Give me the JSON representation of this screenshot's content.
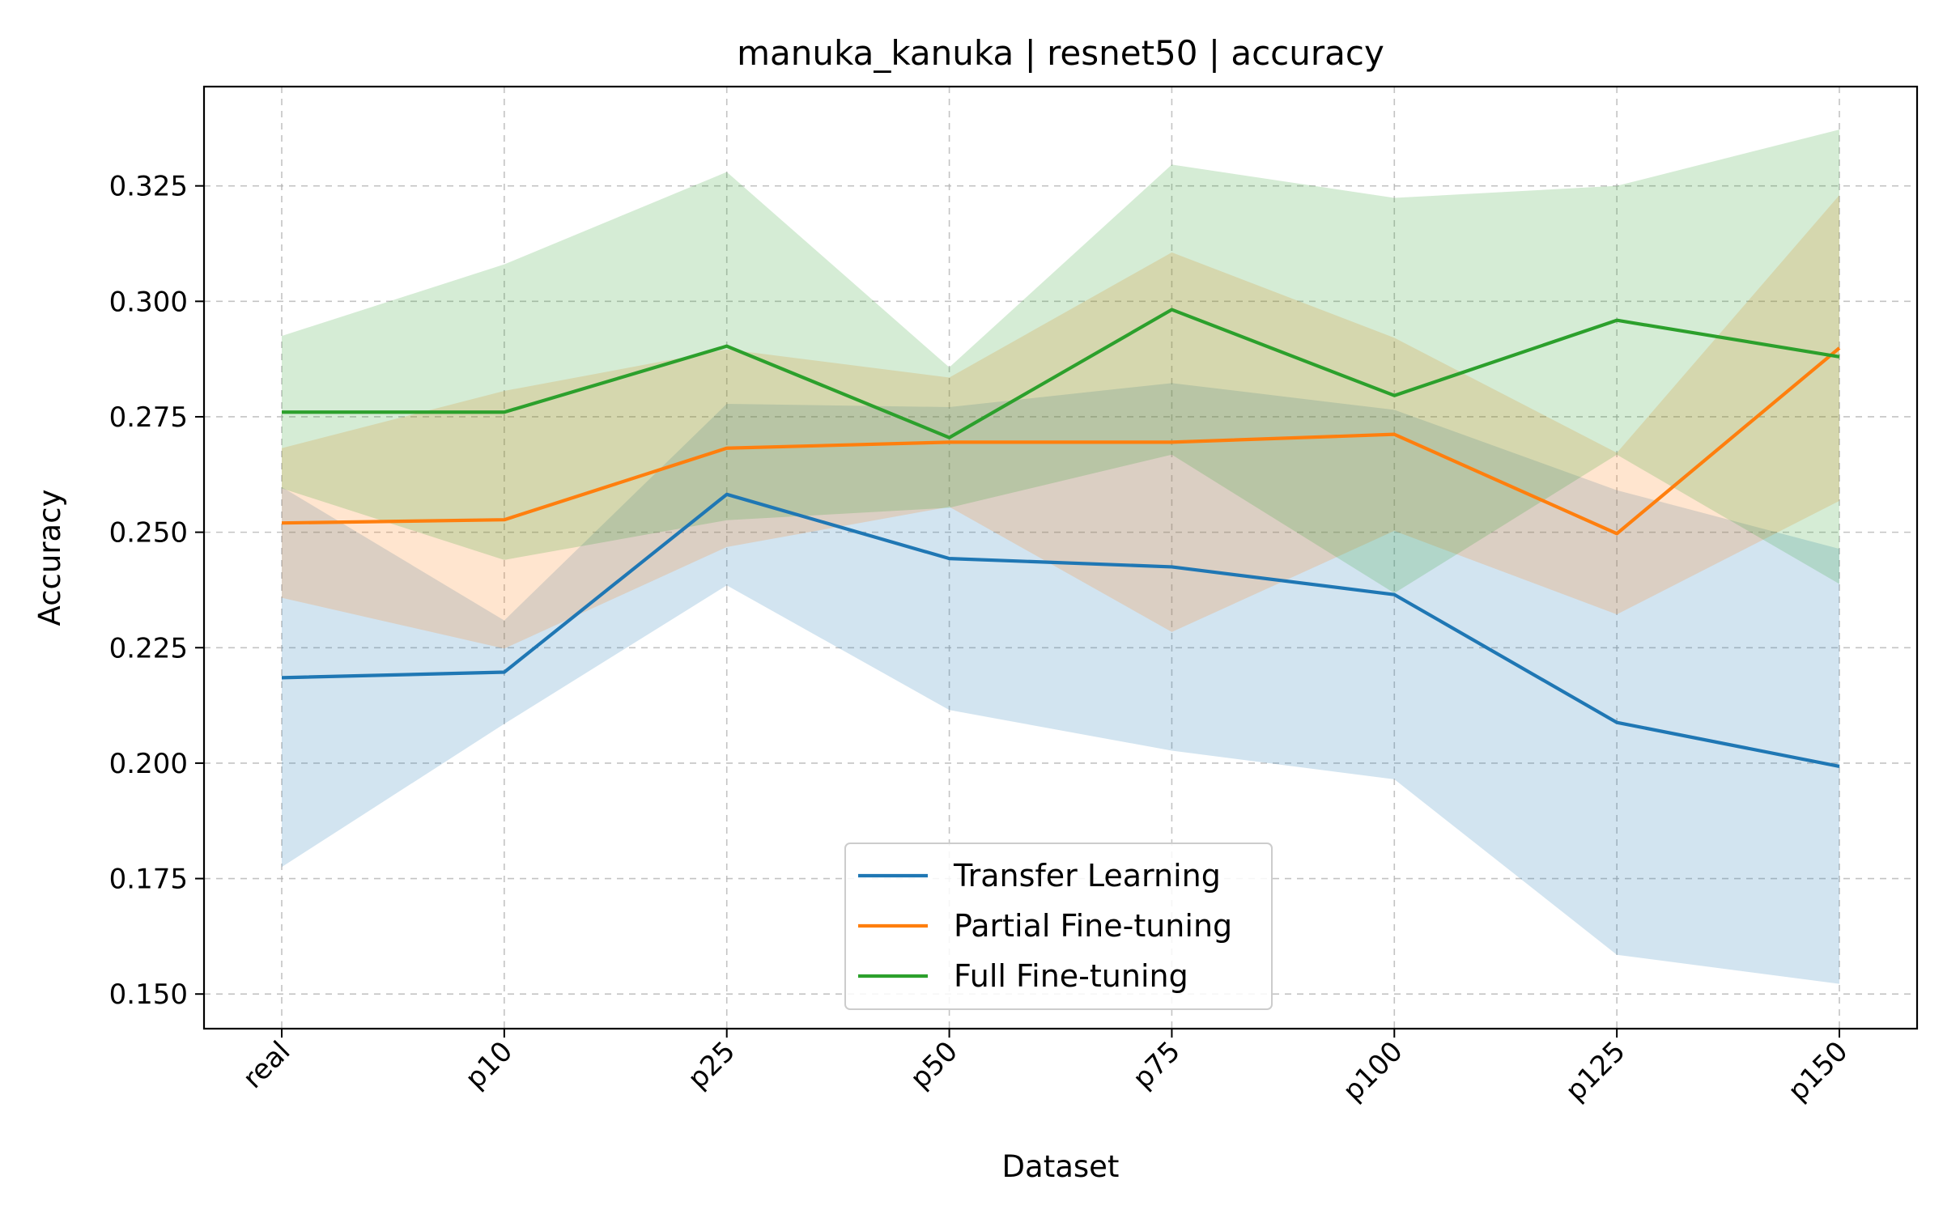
{
  "chart_data": {
    "type": "line",
    "title": "manuka_kanuka | resnet50 | accuracy",
    "xlabel": "Dataset",
    "ylabel": "Accuracy",
    "categories": [
      "real",
      "p10",
      "p25",
      "p50",
      "p75",
      "p100",
      "p125",
      "p150"
    ],
    "ylim": [
      0.1425,
      0.3465
    ],
    "yticks": [
      0.15,
      0.175,
      0.2,
      0.225,
      0.25,
      0.275,
      0.3,
      0.325
    ],
    "ytick_labels": [
      "0.150",
      "0.175",
      "0.200",
      "0.225",
      "0.250",
      "0.275",
      "0.300",
      "0.325"
    ],
    "grid": true,
    "legend_position": "lower-center",
    "series": [
      {
        "name": "Transfer Learning",
        "color": "#1f77b4",
        "values": [
          0.2185,
          0.2197,
          0.2582,
          0.2443,
          0.2425,
          0.2365,
          0.2088,
          0.1993
        ],
        "lower": [
          0.1775,
          0.2085,
          0.2385,
          0.2115,
          0.2027,
          0.1965,
          0.1585,
          0.1522
        ],
        "upper": [
          0.2598,
          0.2309,
          0.2778,
          0.2771,
          0.2823,
          0.2765,
          0.2591,
          0.2464
        ]
      },
      {
        "name": "Partial Fine-tuning",
        "color": "#ff7f0e",
        "values": [
          0.252,
          0.2527,
          0.2682,
          0.2695,
          0.2695,
          0.2712,
          0.2497,
          0.2899
        ],
        "lower": [
          0.2358,
          0.2248,
          0.2468,
          0.2555,
          0.2284,
          0.2503,
          0.2322,
          0.2568
        ],
        "upper": [
          0.2682,
          0.2806,
          0.2896,
          0.2835,
          0.3106,
          0.2921,
          0.2672,
          0.323
        ]
      },
      {
        "name": "Full Fine-tuning",
        "color": "#2ca02c",
        "values": [
          0.276,
          0.276,
          0.2903,
          0.2705,
          0.2982,
          0.2796,
          0.2959,
          0.288
        ],
        "lower": [
          0.2595,
          0.244,
          0.2526,
          0.2553,
          0.2668,
          0.2368,
          0.2668,
          0.2388
        ],
        "upper": [
          0.2925,
          0.308,
          0.328,
          0.2857,
          0.3296,
          0.3224,
          0.325,
          0.3372
        ]
      }
    ]
  }
}
